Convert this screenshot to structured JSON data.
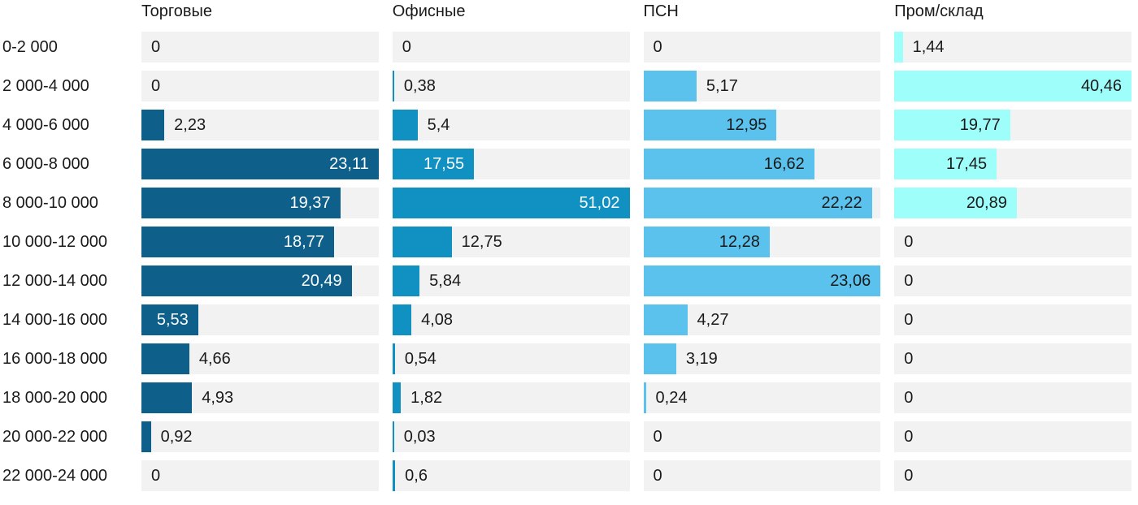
{
  "chart_data": {
    "type": "bar",
    "orientation": "horizontal",
    "scale_note": "each column is scaled independently to its own maximum value",
    "grid": "off",
    "legend": "none",
    "track_color": "#f2f2f2",
    "text_color": "#1a1a1a",
    "categories": [
      "0-2 000",
      "2 000-4 000",
      "4 000-6 000",
      "6 000-8 000",
      "8 000-10 000",
      "10 000-12 000",
      "12 000-14 000",
      "14 000-16 000",
      "16 000-18 000",
      "18 000-20 000",
      "20 000-22 000",
      "22 000-24 000"
    ],
    "series": [
      {
        "name": "Торговые",
        "color": "#0e5f8a",
        "inside_label_color": "#ffffff",
        "values": [
          0,
          0,
          2.23,
          23.11,
          19.37,
          18.77,
          20.49,
          5.53,
          4.66,
          4.93,
          0.92,
          0
        ],
        "labels": [
          "0",
          "0",
          "2,23",
          "23,11",
          "19,37",
          "18,77",
          "20,49",
          "5,53",
          "4,66",
          "4,93",
          "0,92",
          "0"
        ]
      },
      {
        "name": "Офисные",
        "color": "#1190c2",
        "inside_label_color": "#ffffff",
        "values": [
          0,
          0.38,
          5.4,
          17.55,
          51.02,
          12.75,
          5.84,
          4.08,
          0.54,
          1.82,
          0.03,
          0.6
        ],
        "labels": [
          "0",
          "0,38",
          "5,4",
          "17,55",
          "51,02",
          "12,75",
          "5,84",
          "4,08",
          "0,54",
          "1,82",
          "0,03",
          "0,6"
        ]
      },
      {
        "name": "ПСН",
        "color": "#5bc2ee",
        "inside_label_color": "#1a1a1a",
        "values": [
          0,
          5.17,
          12.95,
          16.62,
          22.22,
          12.28,
          23.06,
          4.27,
          3.19,
          0.24,
          0,
          0
        ],
        "labels": [
          "0",
          "5,17",
          "12,95",
          "16,62",
          "22,22",
          "12,28",
          "23,06",
          "4,27",
          "3,19",
          "0,24",
          "0",
          "0"
        ]
      },
      {
        "name": "Пром/склад",
        "color": "#9efefa",
        "inside_label_color": "#1a1a1a",
        "values": [
          1.44,
          40.46,
          19.77,
          17.45,
          20.89,
          0,
          0,
          0,
          0,
          0,
          0,
          0
        ],
        "labels": [
          "1,44",
          "40,46",
          "19,77",
          "17,45",
          "20,89",
          "0",
          "0",
          "0",
          "0",
          "0",
          "0",
          "0"
        ]
      }
    ]
  }
}
